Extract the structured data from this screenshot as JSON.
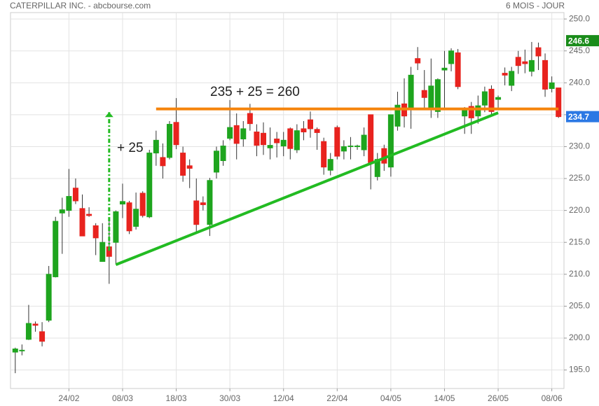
{
  "chart_data": {
    "type": "candlestick",
    "title": "CATERPILLAR INC. - abcbourse.com",
    "subtitle": "6 MOIS - JOUR",
    "categories": [
      null,
      null,
      null,
      null,
      null,
      null,
      null,
      null,
      "24/02",
      null,
      null,
      null,
      null,
      null,
      null,
      null,
      "08/03",
      null,
      null,
      null,
      null,
      null,
      null,
      null,
      "18/03",
      null,
      null,
      null,
      null,
      null,
      null,
      null,
      "30/03",
      null,
      null,
      null,
      null,
      null,
      null,
      null,
      "12/04",
      null,
      null,
      null,
      null,
      null,
      null,
      null,
      "22/04",
      null,
      null,
      null,
      null,
      null,
      null,
      null,
      "04/05",
      null,
      null,
      null,
      null,
      null,
      null,
      null,
      "14/05",
      null,
      null,
      null,
      null,
      null,
      null,
      null,
      "26/05",
      null,
      null,
      null,
      null,
      null,
      null,
      null,
      "08/06",
      null
    ],
    "open": [
      197.8,
      198.0,
      199.8,
      202.2,
      201.0,
      202.8,
      209.6,
      219.6,
      220.0,
      223.5,
      220.3,
      219.4,
      217.6,
      212.0,
      214.3,
      215.0,
      221.0,
      221.2,
      217.5,
      222.7,
      219.0,
      229.0,
      228.3,
      228.3,
      233.8,
      229.0,
      227.0,
      221.5,
      221.2,
      217.8,
      226.0,
      227.8,
      231.3,
      233.3,
      231.2,
      235.2,
      232.3,
      232.1,
      229.8,
      231.2,
      230.1,
      232.8,
      229.5,
      232.8,
      234.2,
      232.7,
      230.8,
      226.3,
      233.0,
      229.3,
      230.0,
      230.0,
      229.5,
      235.0,
      225.3,
      229.7,
      226.8,
      233.2,
      236.7,
      235.8,
      243.8,
      238.8,
      236.1,
      235.5,
      242.0,
      243.0,
      244.7,
      234.8,
      236.3,
      234.8,
      236.5,
      239.0,
      237.4,
      241.5,
      239.6,
      244.0,
      243.3,
      241.8,
      245.5,
      243.5,
      239.1,
      239.2
    ],
    "high": [
      198.5,
      199.0,
      205.2,
      202.6,
      202.5,
      211.3,
      219.0,
      222.0,
      226.5,
      225.0,
      222.5,
      220.5,
      218.0,
      218.0,
      218.3,
      220.0,
      224.2,
      221.5,
      222.8,
      223.0,
      229.5,
      232.5,
      230.5,
      234.0,
      237.6,
      230.0,
      228.0,
      225.0,
      222.2,
      225.1,
      230.0,
      231.0,
      237.3,
      235.2,
      234.0,
      236.7,
      233.5,
      233.8,
      233.0,
      232.3,
      232.3,
      233.0,
      233.5,
      234.0,
      235.5,
      233.0,
      231.4,
      229.0,
      233.3,
      231.0,
      231.5,
      230.3,
      233.0,
      235.0,
      229.0,
      230.3,
      235.0,
      238.6,
      240.7,
      242.5,
      245.6,
      242.0,
      243.8,
      240.7,
      245.0,
      245.4,
      245.3,
      236.2,
      237.0,
      238.0,
      239.4,
      239.6,
      238.0,
      242.4,
      242.5,
      245.0,
      245.2,
      246.4,
      246.3,
      244.6,
      241.0,
      239.2
    ],
    "low": [
      194.5,
      197.3,
      199.7,
      201.0,
      198.7,
      202.5,
      209.5,
      213.2,
      219.0,
      221.0,
      216.0,
      219.0,
      213.0,
      212.0,
      208.5,
      211.5,
      218.8,
      216.3,
      217.0,
      218.9,
      218.8,
      227.0,
      225.0,
      228.0,
      229.6,
      224.5,
      223.5,
      216.5,
      220.0,
      216.0,
      225.0,
      227.0,
      231.0,
      228.0,
      230.0,
      232.5,
      228.5,
      228.7,
      228.0,
      228.3,
      228.5,
      228.0,
      229.0,
      231.0,
      231.4,
      229.5,
      225.6,
      225.5,
      228.0,
      228.0,
      228.0,
      229.5,
      228.5,
      223.3,
      224.7,
      226.2,
      225.3,
      232.5,
      233.0,
      232.8,
      242.0,
      236.0,
      234.5,
      234.5,
      236.0,
      241.8,
      239.0,
      232.0,
      232.0,
      233.6,
      235.4,
      235.0,
      236.0,
      239.6,
      238.7,
      241.4,
      241.5,
      241.0,
      242.0,
      237.8,
      238.5,
      234.5
    ],
    "close": [
      198.3,
      198.1,
      202.3,
      202.0,
      199.5,
      210.0,
      218.3,
      220.1,
      222.2,
      221.5,
      216.0,
      219.2,
      215.7,
      215.0,
      212.8,
      219.8,
      221.4,
      216.8,
      220.2,
      219.2,
      229.0,
      231.0,
      227.0,
      233.5,
      230.3,
      225.5,
      226.6,
      217.8,
      220.9,
      224.7,
      229.3,
      230.1,
      233.0,
      230.5,
      232.8,
      233.6,
      230.2,
      230.3,
      230.2,
      230.6,
      231.0,
      229.7,
      232.5,
      232.3,
      232.8,
      232.2,
      226.8,
      228.0,
      228.5,
      230.0,
      230.1,
      230.1,
      231.8,
      227.5,
      228.0,
      227.4,
      235.0,
      236.5,
      234.8,
      241.2,
      243.1,
      237.7,
      239.5,
      240.5,
      242.3,
      245.0,
      239.4,
      235.7,
      234.5,
      236.4,
      238.6,
      235.5,
      237.7,
      241.2,
      241.8,
      242.7,
      243.0,
      243.5,
      244.2,
      239.0,
      240.0,
      234.7
    ],
    "up_color": "#1ea51e",
    "down_color": "#e8231e",
    "ylim": [
      192.1,
      251
    ],
    "yticks": [
      {
        "value": 195,
        "label": "195.0"
      },
      {
        "value": 200,
        "label": "200.0"
      },
      {
        "value": 205,
        "label": "205.0"
      },
      {
        "value": 210,
        "label": "210.0"
      },
      {
        "value": 215,
        "label": "215.0"
      },
      {
        "value": 220,
        "label": "220.0"
      },
      {
        "value": 225,
        "label": "225.0"
      },
      {
        "value": 230,
        "label": "230.0"
      },
      {
        "value": 235,
        "label": "235.0"
      },
      {
        "value": 240,
        "label": "240.0"
      },
      {
        "value": 245,
        "label": "245.0"
      },
      {
        "value": 250,
        "label": "250.0"
      }
    ],
    "grid": true,
    "price_labels": [
      {
        "value": 246.6,
        "label": "246.6",
        "color": "#1a8c1a"
      },
      {
        "value": 234.7,
        "label": "234.7",
        "color": "#2b78e4"
      }
    ],
    "annotations": {
      "resistance": {
        "x": [
          21,
          81
        ],
        "y": [
          235.9,
          235.9
        ],
        "color": "#f5840c"
      },
      "trendline": {
        "x": [
          15,
          72
        ],
        "y": [
          211.5,
          235.3
        ],
        "color": "#22bb22"
      },
      "arrow": {
        "x": [
          14,
          14
        ],
        "y": [
          213.7,
          235.4
        ],
        "color": "#22bb22"
      },
      "arrow_text": "+ 25",
      "target_text": "235 + 25 = 260"
    }
  }
}
